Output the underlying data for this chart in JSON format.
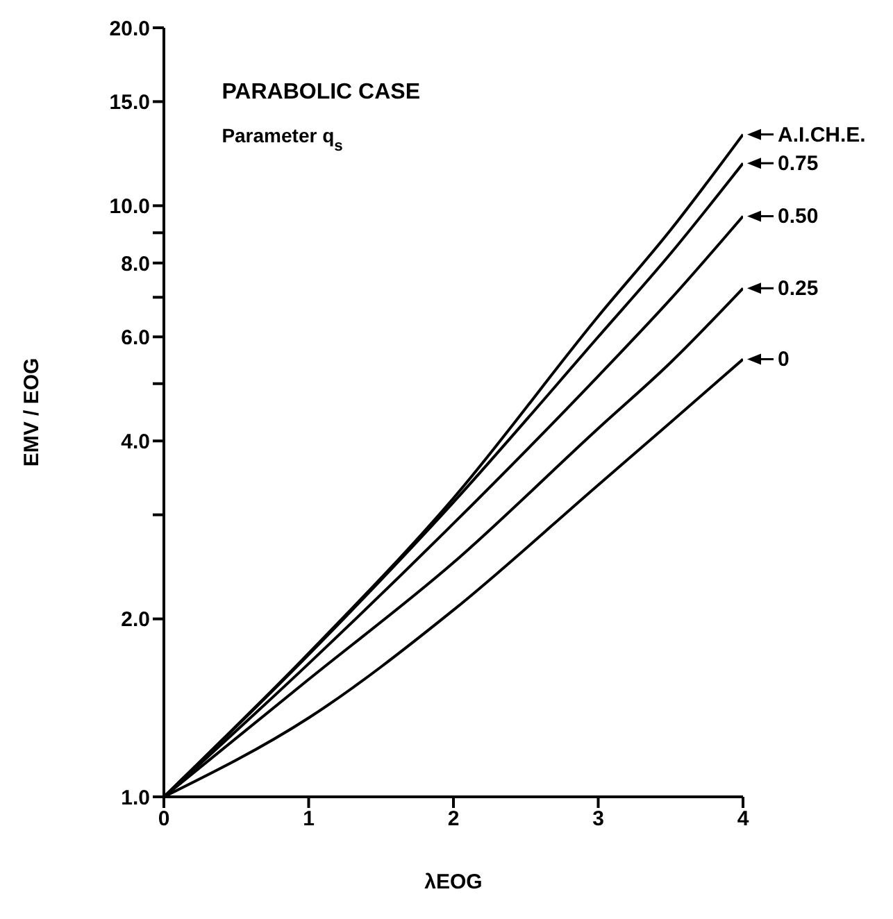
{
  "chart_data": {
    "type": "line",
    "title": "PARABOLIC CASE",
    "legend_title": "Parameter q$_{s}$",
    "xlabel": "λEOG",
    "ylabel": "EMV / EOG",
    "log": "y",
    "marker": "none",
    "line_style": "solid",
    "legend": "right",
    "x": [
      0,
      1,
      2,
      3,
      3.5,
      4
    ],
    "xlim": [
      0,
      4
    ],
    "xticks": [
      0,
      1,
      2,
      3,
      4
    ],
    "ylim": [
      1,
      20
    ],
    "yticks": [
      {
        "value": 1,
        "label": "1.0"
      },
      {
        "value": 2,
        "label": "2.0"
      },
      {
        "value": 3,
        "label": null
      },
      {
        "value": 4,
        "label": "4.0"
      },
      {
        "value": 5,
        "label": null
      },
      {
        "value": 6,
        "label": "6.0"
      },
      {
        "value": 7,
        "label": null
      },
      {
        "value": 8,
        "label": "8.0"
      },
      {
        "value": 9,
        "label": null
      },
      {
        "value": 10,
        "label": "10.0"
      },
      {
        "value": 15,
        "label": "15.0"
      },
      {
        "value": 20,
        "label": "20.0"
      }
    ],
    "series": [
      {
        "name": "A.I.CH.E.",
        "color": "#000000",
        "values": [
          1,
          1.75,
          3.2,
          6.5,
          9.1,
          13.2
        ]
      },
      {
        "name": "0.75",
        "color": "#000000",
        "values": [
          1,
          1.74,
          3.15,
          6.0,
          8.3,
          11.8
        ]
      },
      {
        "name": "0.50",
        "color": "#000000",
        "values": [
          1,
          1.68,
          2.9,
          5.15,
          6.95,
          9.6
        ]
      },
      {
        "name": "0.25",
        "color": "#000000",
        "values": [
          1,
          1.58,
          2.49,
          4.2,
          5.43,
          7.25
        ]
      },
      {
        "name": "0",
        "color": "#000000",
        "values": [
          1,
          1.36,
          2.07,
          3.37,
          4.3,
          5.5
        ]
      }
    ]
  }
}
